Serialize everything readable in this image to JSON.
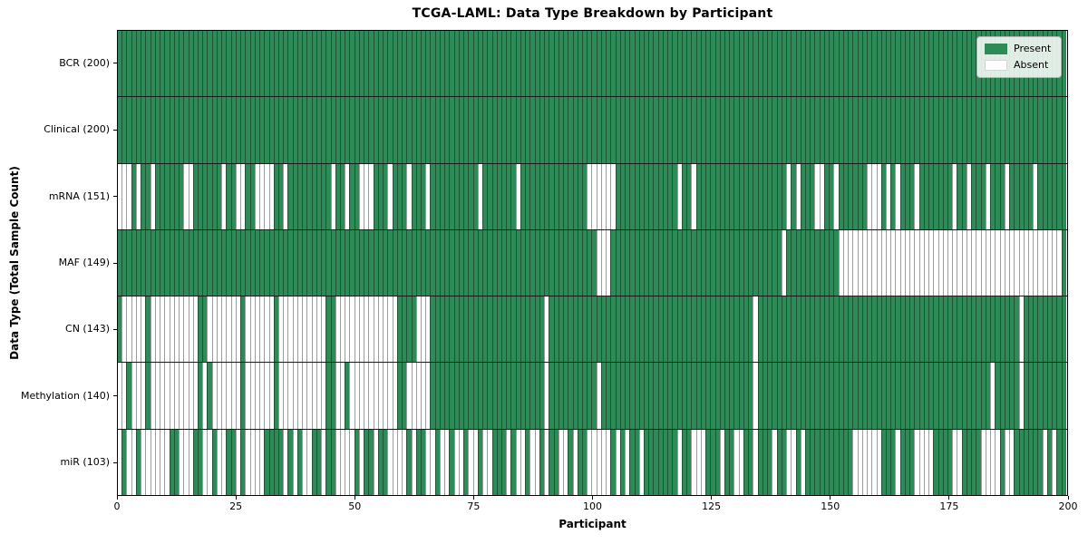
{
  "title": "TCGA-LAML: Data Type Breakdown by Participant",
  "x_axis": {
    "label": "Participant",
    "ticks": [
      0,
      25,
      50,
      75,
      100,
      125,
      150,
      175,
      200
    ],
    "min": 0,
    "max": 200
  },
  "y_axis": {
    "label": "Data Type (Total Sample Count)"
  },
  "legend": {
    "present_label": "Present",
    "absent_label": "Absent"
  },
  "colors": {
    "present": "#2e8b57",
    "absent": "#ffffff"
  },
  "n_participants": 200,
  "chart_data": {
    "type": "heatmap",
    "x": "participant index 0-199",
    "cell_states": [
      "Present",
      "Absent"
    ],
    "rows": [
      {
        "key": "bcr",
        "label": "BCR (200)",
        "present_count": 200,
        "absent_indices": []
      },
      {
        "key": "clinical",
        "label": "Clinical (200)",
        "present_count": 200,
        "absent_indices": []
      },
      {
        "key": "mrna",
        "label": "mRNA (151)",
        "present_count": 151,
        "absent_indices": [
          0,
          1,
          2,
          4,
          7,
          14,
          15,
          22,
          25,
          26,
          29,
          30,
          31,
          32,
          35,
          45,
          48,
          51,
          52,
          53,
          57,
          61,
          65,
          76,
          84,
          99,
          100,
          101,
          102,
          103,
          104,
          118,
          121,
          141,
          143,
          147,
          148,
          151,
          158,
          159,
          160,
          162,
          164,
          168,
          176,
          179,
          183,
          187,
          193
        ]
      },
      {
        "key": "maf",
        "label": "MAF (149)",
        "present_count": 149,
        "absent_indices": [
          101,
          102,
          103,
          140,
          152,
          153,
          154,
          155,
          156,
          157,
          158,
          159,
          160,
          161,
          162,
          163,
          164,
          165,
          166,
          167,
          168,
          169,
          170,
          171,
          172,
          173,
          174,
          175,
          176,
          177,
          178,
          179,
          180,
          181,
          182,
          183,
          184,
          185,
          186,
          187,
          188,
          189,
          190,
          191,
          192,
          193,
          194,
          195,
          196,
          197,
          198
        ]
      },
      {
        "key": "cn",
        "label": "CN (143)",
        "present_count": 143,
        "absent_indices": [
          1,
          2,
          3,
          4,
          5,
          7,
          8,
          9,
          10,
          11,
          12,
          13,
          14,
          15,
          16,
          19,
          20,
          21,
          22,
          23,
          24,
          25,
          27,
          28,
          29,
          30,
          31,
          32,
          34,
          35,
          36,
          37,
          38,
          39,
          40,
          41,
          42,
          43,
          46,
          47,
          48,
          49,
          50,
          51,
          52,
          53,
          54,
          55,
          56,
          57,
          58,
          63,
          64,
          65,
          90,
          134,
          190
        ]
      },
      {
        "key": "methylation",
        "label": "Methylation (140)",
        "present_count": 140,
        "absent_indices": [
          0,
          1,
          3,
          4,
          5,
          7,
          8,
          9,
          10,
          11,
          12,
          13,
          14,
          15,
          16,
          18,
          20,
          21,
          22,
          23,
          24,
          25,
          27,
          28,
          29,
          30,
          31,
          32,
          34,
          35,
          36,
          37,
          38,
          39,
          40,
          41,
          42,
          43,
          46,
          47,
          49,
          50,
          51,
          52,
          53,
          54,
          55,
          56,
          57,
          58,
          61,
          62,
          63,
          64,
          65,
          90,
          101,
          134,
          184,
          190
        ]
      },
      {
        "key": "mir",
        "label": "miR (103)",
        "present_count": 103,
        "absent_indices": [
          0,
          2,
          3,
          5,
          6,
          7,
          8,
          9,
          10,
          13,
          14,
          15,
          18,
          19,
          21,
          22,
          25,
          27,
          28,
          29,
          30,
          35,
          37,
          39,
          40,
          43,
          46,
          47,
          48,
          49,
          51,
          54,
          57,
          58,
          59,
          60,
          62,
          65,
          66,
          68,
          69,
          71,
          72,
          74,
          75,
          77,
          78,
          82,
          84,
          85,
          87,
          88,
          90,
          93,
          94,
          96,
          99,
          100,
          101,
          102,
          103,
          105,
          107,
          110,
          118,
          121,
          122,
          123,
          127,
          130,
          131,
          134,
          138,
          141,
          142,
          144,
          155,
          156,
          157,
          158,
          159,
          160,
          164,
          168,
          169,
          170,
          171,
          176,
          177,
          182,
          183,
          184,
          185,
          187,
          188,
          195,
          197
        ]
      }
    ]
  }
}
